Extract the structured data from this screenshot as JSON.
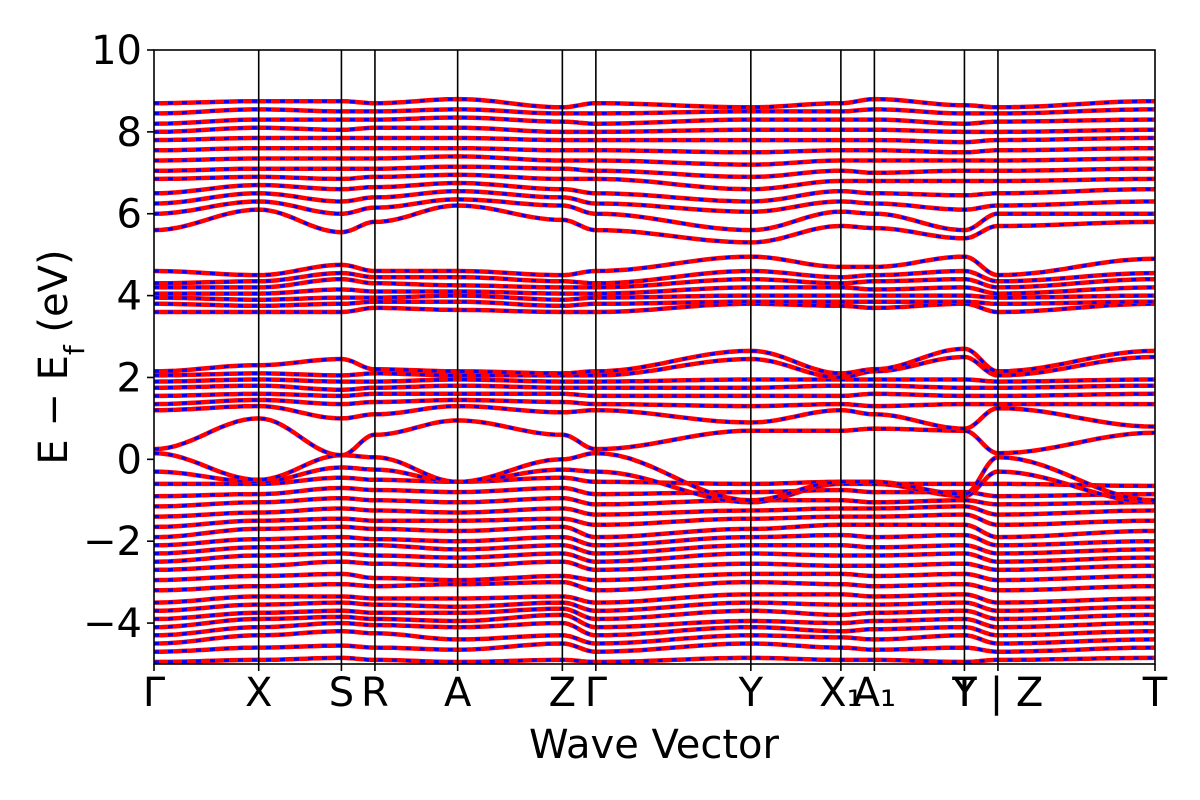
{
  "chart_data": {
    "type": "line",
    "xlabel": "Wave Vector",
    "ylabel": "E − E_f (eV)",
    "ylabel_main": "E − E",
    "ylabel_sub": "f",
    "ylabel_unit": " (eV)",
    "ylim": [
      -5,
      10
    ],
    "y_ticks": [
      -4,
      -2,
      0,
      2,
      4,
      6,
      8,
      10
    ],
    "y_tick_labels": [
      "−4",
      "−2",
      "0",
      "2",
      "4",
      "6",
      "8",
      "10"
    ],
    "k_points": [
      {
        "label": "Γ",
        "x": 0.0
      },
      {
        "label": "X",
        "x": 1.0
      },
      {
        "label": "S",
        "x": 1.79
      },
      {
        "label": "R",
        "x": 2.11
      },
      {
        "label": "A",
        "x": 2.9
      },
      {
        "label": "Z",
        "x": 3.9
      },
      {
        "label": "Γ",
        "x": 4.22
      },
      {
        "label": "Y",
        "x": 5.7
      },
      {
        "label": "X₁",
        "x": 6.56
      },
      {
        "label": "A₁",
        "x": 6.88
      },
      {
        "label": "T",
        "x": 7.74
      },
      {
        "label": "Y | Z",
        "x": 8.06
      },
      {
        "label": "T",
        "x": 9.56
      }
    ],
    "path_break_label": "Y | Z",
    "series": [
      {
        "color": "#ff0000",
        "style": "solid"
      },
      {
        "color": "#0000ff",
        "style": "dashed"
      }
    ],
    "bands": [
      {
        "anchors": [
          -4.95,
          -4.9,
          -4.85,
          -4.9,
          -4.95,
          -4.9,
          -4.95,
          -4.85,
          -4.9,
          -4.9,
          -4.95,
          -4.9,
          -4.85
        ]
      },
      {
        "anchors": [
          -4.7,
          -4.6,
          -4.55,
          -4.6,
          -4.65,
          -4.5,
          -4.7,
          -4.5,
          -4.6,
          -4.65,
          -4.6,
          -4.7,
          -4.6
        ]
      },
      {
        "anchors": [
          -4.5,
          -4.3,
          -4.2,
          -4.25,
          -4.4,
          -4.3,
          -4.5,
          -4.3,
          -4.35,
          -4.4,
          -4.3,
          -4.5,
          -4.4
        ]
      },
      {
        "anchors": [
          -4.3,
          -4.1,
          -4.0,
          -4.05,
          -4.1,
          -4.0,
          -4.3,
          -4.1,
          -4.2,
          -4.15,
          -4.1,
          -4.3,
          -4.2
        ]
      },
      {
        "anchors": [
          -4.1,
          -3.9,
          -3.85,
          -3.9,
          -3.95,
          -3.8,
          -4.1,
          -3.95,
          -4.0,
          -3.95,
          -3.9,
          -4.1,
          -4.0
        ]
      },
      {
        "anchors": [
          -3.9,
          -3.75,
          -3.7,
          -3.75,
          -3.75,
          -3.65,
          -3.9,
          -3.7,
          -3.8,
          -3.75,
          -3.7,
          -3.9,
          -3.8
        ]
      },
      {
        "anchors": [
          -3.7,
          -3.55,
          -3.5,
          -3.55,
          -3.6,
          -3.5,
          -3.7,
          -3.5,
          -3.55,
          -3.55,
          -3.5,
          -3.7,
          -3.6
        ]
      },
      {
        "anchors": [
          -3.5,
          -3.35,
          -3.35,
          -3.4,
          -3.4,
          -3.35,
          -3.5,
          -3.3,
          -3.3,
          -3.35,
          -3.3,
          -3.5,
          -3.4
        ]
      },
      {
        "anchors": [
          -3.2,
          -3.1,
          -3.05,
          -3.1,
          -3.05,
          -3.0,
          -3.2,
          -3.0,
          -3.05,
          -3.1,
          -3.05,
          -3.2,
          -3.1
        ]
      },
      {
        "anchors": [
          -2.95,
          -2.85,
          -2.8,
          -2.9,
          -2.95,
          -2.85,
          -2.95,
          -2.8,
          -2.8,
          -2.85,
          -2.8,
          -2.95,
          -2.85
        ]
      },
      {
        "anchors": [
          -2.7,
          -2.6,
          -2.5,
          -2.55,
          -2.6,
          -2.5,
          -2.7,
          -2.55,
          -2.6,
          -2.6,
          -2.55,
          -2.7,
          -2.6
        ]
      },
      {
        "anchors": [
          -2.5,
          -2.35,
          -2.3,
          -2.35,
          -2.4,
          -2.3,
          -2.5,
          -2.3,
          -2.35,
          -2.35,
          -2.3,
          -2.5,
          -2.4
        ]
      },
      {
        "anchors": [
          -2.3,
          -2.15,
          -2.1,
          -2.1,
          -2.2,
          -2.1,
          -2.3,
          -2.1,
          -2.1,
          -2.15,
          -2.1,
          -2.3,
          -2.2
        ]
      },
      {
        "anchors": [
          -2.1,
          -1.95,
          -1.9,
          -1.95,
          -2.0,
          -1.9,
          -2.1,
          -1.9,
          -1.85,
          -1.9,
          -1.85,
          -2.1,
          -2.0
        ]
      },
      {
        "anchors": [
          -1.9,
          -1.7,
          -1.65,
          -1.7,
          -1.75,
          -1.65,
          -1.9,
          -1.7,
          -1.6,
          -1.6,
          -1.6,
          -1.9,
          -1.75
        ]
      },
      {
        "anchors": [
          -1.65,
          -1.5,
          -1.45,
          -1.5,
          -1.5,
          -1.45,
          -1.6,
          -1.45,
          -1.4,
          -1.4,
          -1.35,
          -1.6,
          -1.5
        ]
      },
      {
        "anchors": [
          -1.4,
          -1.3,
          -1.2,
          -1.25,
          -1.3,
          -1.2,
          -1.35,
          -1.25,
          -1.2,
          -1.2,
          -1.15,
          -1.35,
          -1.25
        ]
      },
      {
        "anchors": [
          -1.15,
          -1.05,
          -0.95,
          -1.0,
          -1.05,
          -0.95,
          -1.1,
          -1.0,
          -1.0,
          -1.05,
          -1.0,
          -1.1,
          -1.05
        ]
      },
      {
        "anchors": [
          -0.9,
          -0.85,
          -0.7,
          -0.75,
          -0.8,
          -0.7,
          -0.85,
          -0.8,
          -0.75,
          -0.8,
          -0.8,
          -0.9,
          -0.85
        ]
      },
      {
        "anchors": [
          -0.6,
          -0.6,
          -0.45,
          -0.5,
          -0.55,
          -0.45,
          -0.55,
          -0.6,
          -0.55,
          -0.6,
          -0.6,
          -0.6,
          -0.65
        ]
      },
      {
        "anchors": [
          -0.3,
          -0.55,
          -0.2,
          -0.25,
          -0.55,
          -0.25,
          -0.3,
          -1.05,
          -0.6,
          -0.6,
          -0.9,
          -0.3,
          -1.05
        ]
      },
      {
        "anchors": [
          0.15,
          -0.5,
          0.1,
          0.05,
          -0.55,
          0.0,
          0.15,
          -1.0,
          -0.55,
          -0.55,
          -0.85,
          0.05,
          -1.0
        ]
      },
      {
        "anchors": [
          0.25,
          1.0,
          0.1,
          0.6,
          0.95,
          0.6,
          0.25,
          0.7,
          0.7,
          0.75,
          0.7,
          0.15,
          0.65
        ]
      },
      {
        "anchors": [
          1.2,
          1.3,
          1.0,
          1.1,
          1.3,
          1.15,
          1.2,
          0.9,
          1.2,
          1.1,
          0.75,
          1.25,
          0.8
        ]
      },
      {
        "anchors": [
          1.35,
          1.45,
          1.35,
          1.4,
          1.45,
          1.4,
          1.35,
          1.3,
          1.35,
          1.3,
          1.35,
          1.35,
          1.35
        ]
      },
      {
        "anchors": [
          1.55,
          1.6,
          1.55,
          1.6,
          1.6,
          1.6,
          1.55,
          1.55,
          1.55,
          1.6,
          1.55,
          1.55,
          1.6
        ]
      },
      {
        "anchors": [
          1.75,
          1.8,
          1.7,
          1.75,
          1.8,
          1.75,
          1.75,
          1.75,
          1.8,
          1.8,
          1.75,
          1.75,
          1.8
        ]
      },
      {
        "anchors": [
          1.9,
          1.95,
          1.9,
          1.9,
          1.95,
          1.9,
          1.9,
          1.95,
          1.95,
          1.95,
          1.95,
          1.9,
          1.95
        ]
      },
      {
        "anchors": [
          2.05,
          2.1,
          2.05,
          2.1,
          2.05,
          2.05,
          2.05,
          2.45,
          2.0,
          2.15,
          2.5,
          2.05,
          2.5
        ]
      },
      {
        "anchors": [
          2.15,
          2.3,
          2.45,
          2.2,
          2.15,
          2.1,
          2.15,
          2.65,
          2.1,
          2.2,
          2.7,
          2.15,
          2.65
        ]
      },
      {
        "anchors": [
          3.6,
          3.6,
          3.6,
          3.7,
          3.65,
          3.6,
          3.6,
          3.8,
          3.75,
          3.7,
          3.8,
          3.6,
          3.8
        ]
      },
      {
        "anchors": [
          3.8,
          3.75,
          3.8,
          3.85,
          3.85,
          3.75,
          3.8,
          3.85,
          3.85,
          3.85,
          3.85,
          3.8,
          3.85
        ]
      },
      {
        "anchors": [
          3.95,
          3.9,
          3.95,
          3.95,
          4.0,
          3.9,
          3.95,
          4.0,
          4.0,
          4.0,
          4.0,
          3.95,
          4.0
        ]
      },
      {
        "anchors": [
          4.05,
          4.05,
          4.15,
          4.1,
          4.1,
          4.05,
          4.05,
          4.2,
          4.2,
          4.15,
          4.2,
          4.05,
          4.2
        ]
      },
      {
        "anchors": [
          4.2,
          4.2,
          4.4,
          4.3,
          4.25,
          4.2,
          4.2,
          4.4,
          4.3,
          4.35,
          4.4,
          4.2,
          4.4
        ]
      },
      {
        "anchors": [
          4.3,
          4.35,
          4.55,
          4.45,
          4.45,
          4.35,
          4.3,
          4.6,
          4.45,
          4.5,
          4.6,
          4.35,
          4.55
        ]
      },
      {
        "anchors": [
          4.6,
          4.5,
          4.75,
          4.6,
          4.6,
          4.5,
          4.6,
          4.95,
          4.7,
          4.7,
          4.95,
          4.5,
          4.9
        ]
      },
      {
        "anchors": [
          5.6,
          6.1,
          5.55,
          5.8,
          6.2,
          5.85,
          5.6,
          5.3,
          5.7,
          5.65,
          5.4,
          5.7,
          5.8
        ]
      },
      {
        "anchors": [
          6.0,
          6.3,
          6.0,
          6.15,
          6.35,
          6.2,
          6.0,
          5.6,
          6.05,
          6.0,
          5.6,
          6.0,
          6.0
        ]
      },
      {
        "anchors": [
          6.25,
          6.5,
          6.3,
          6.4,
          6.55,
          6.4,
          6.25,
          6.05,
          6.3,
          6.25,
          6.1,
          6.2,
          6.3
        ]
      },
      {
        "anchors": [
          6.5,
          6.7,
          6.6,
          6.65,
          6.75,
          6.6,
          6.5,
          6.3,
          6.55,
          6.5,
          6.45,
          6.5,
          6.6
        ]
      },
      {
        "anchors": [
          6.85,
          6.9,
          6.85,
          6.9,
          6.95,
          6.85,
          6.85,
          6.6,
          6.8,
          6.8,
          6.8,
          6.8,
          6.85
        ]
      },
      {
        "anchors": [
          7.05,
          7.1,
          7.1,
          7.1,
          7.15,
          7.1,
          7.05,
          6.9,
          7.05,
          7.0,
          7.05,
          7.05,
          7.1
        ]
      },
      {
        "anchors": [
          7.3,
          7.35,
          7.35,
          7.35,
          7.4,
          7.3,
          7.3,
          7.2,
          7.3,
          7.3,
          7.3,
          7.3,
          7.35
        ]
      },
      {
        "anchors": [
          7.55,
          7.6,
          7.6,
          7.6,
          7.6,
          7.55,
          7.55,
          7.5,
          7.55,
          7.55,
          7.5,
          7.55,
          7.6
        ]
      },
      {
        "anchors": [
          7.8,
          7.85,
          7.85,
          7.85,
          7.85,
          7.8,
          7.8,
          7.8,
          7.8,
          7.8,
          7.75,
          7.8,
          7.85
        ]
      },
      {
        "anchors": [
          8.0,
          8.1,
          8.05,
          8.1,
          8.1,
          8.0,
          8.0,
          8.05,
          8.05,
          8.05,
          8.0,
          8.0,
          8.05
        ]
      },
      {
        "anchors": [
          8.2,
          8.3,
          8.3,
          8.3,
          8.35,
          8.25,
          8.2,
          8.3,
          8.3,
          8.3,
          8.2,
          8.25,
          8.3
        ]
      },
      {
        "anchors": [
          8.45,
          8.55,
          8.5,
          8.5,
          8.55,
          8.45,
          8.45,
          8.5,
          8.5,
          8.55,
          8.45,
          8.45,
          8.55
        ]
      },
      {
        "anchors": [
          8.7,
          8.75,
          8.75,
          8.7,
          8.8,
          8.6,
          8.7,
          8.6,
          8.7,
          8.8,
          8.65,
          8.6,
          8.75
        ]
      }
    ]
  }
}
